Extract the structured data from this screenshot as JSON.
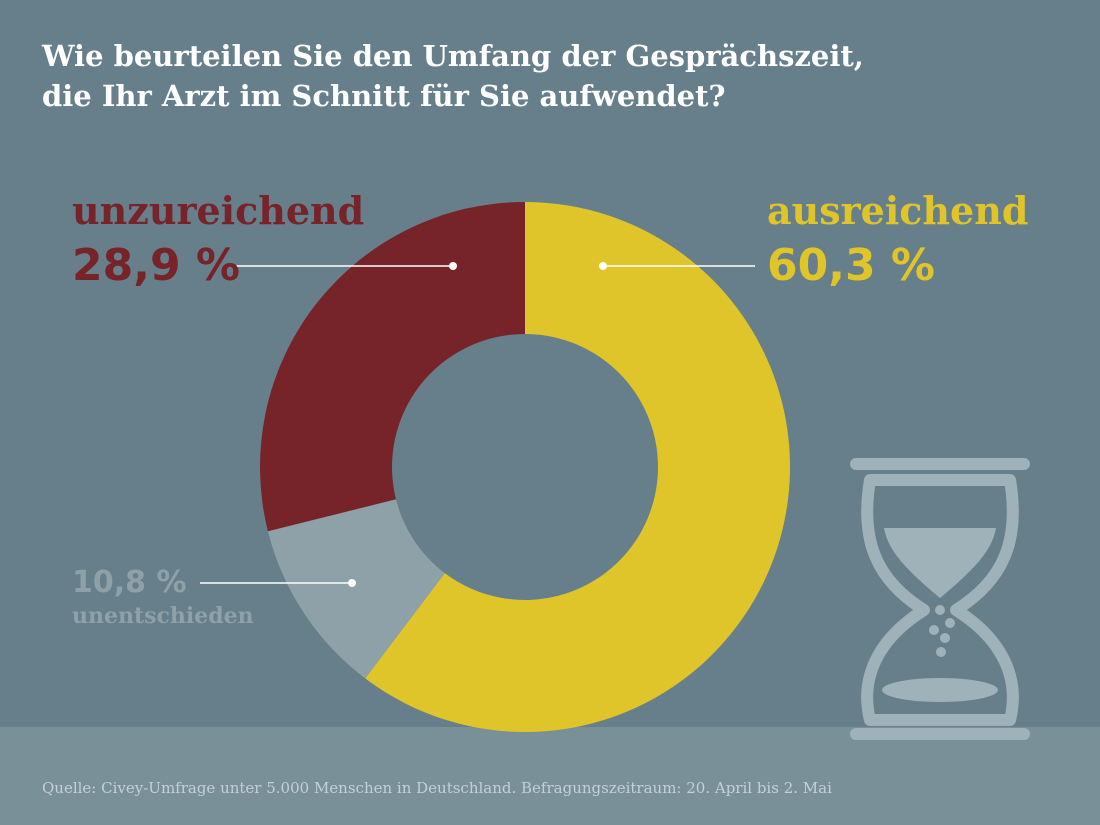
{
  "title_lines": [
    "Wie beurteilen Sie den Umfang der Gesprächszeit,",
    "die Ihr Arzt im Schnitt für Sie aufwendet?"
  ],
  "source": "Quelle: Civey-Umfrage unter 5.000 Menschen in Deutschland. Befragungszeitraum: 20. April bis 2. Mai",
  "colors": {
    "background": "#677f8a",
    "footer": "#7a9098",
    "ausreichend": "#dfc52a",
    "unzureichend": "#76232a",
    "unentschieden": "#8ea0a8",
    "icon": "#9fb2b9"
  },
  "icon": "hourglass-icon",
  "chart_data": {
    "type": "pie",
    "variant": "donut",
    "unit": "%",
    "slices": [
      {
        "label": "ausreichend",
        "value": 60.3,
        "value_text": "60,3 %"
      },
      {
        "label": "unentschieden",
        "value": 10.8,
        "value_text": "10,8 %"
      },
      {
        "label": "unzureichend",
        "value": 28.9,
        "value_text": "28,9 %"
      }
    ]
  }
}
